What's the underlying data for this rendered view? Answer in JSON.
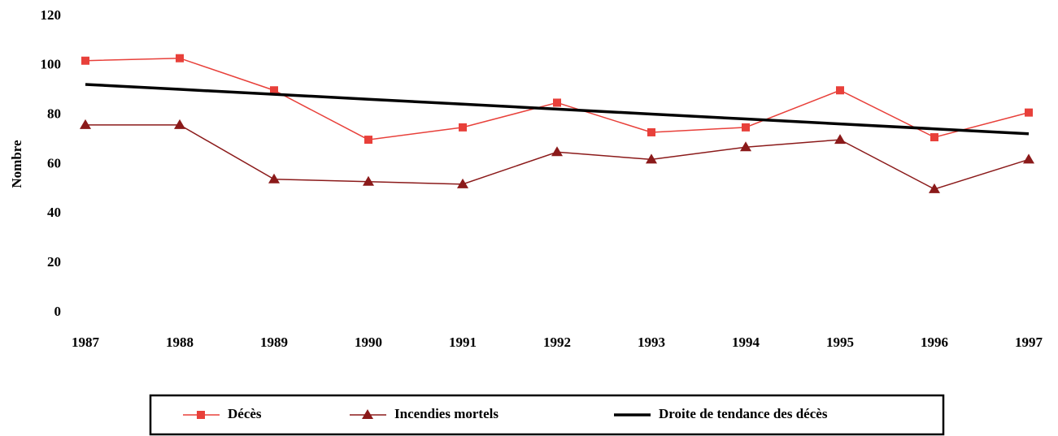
{
  "chart_data": {
    "type": "line",
    "y_label": "Nombre",
    "categories": [
      "1987",
      "1988",
      "1989",
      "1990",
      "1991",
      "1992",
      "1993",
      "1994",
      "1995",
      "1996",
      "1997"
    ],
    "series": [
      {
        "name": "Décès",
        "color": "#e8403a",
        "marker": "square",
        "values": [
          102,
          103,
          90,
          70,
          75,
          85,
          73,
          75,
          90,
          71,
          81
        ]
      },
      {
        "name": "Incendies mortels",
        "color": "#8b1a1a",
        "marker": "triangle",
        "values": [
          76,
          76,
          54,
          53,
          52,
          65,
          62,
          67,
          70,
          50,
          62
        ]
      },
      {
        "name": "Droite de tendance des décès",
        "color": "#000000",
        "marker": null,
        "values": [
          92.4,
          90.4,
          88.4,
          86.4,
          84.4,
          82.4,
          80.4,
          78.4,
          76.4,
          74.4,
          72.4
        ]
      }
    ],
    "ylim": [
      0,
      120
    ],
    "yticks": [
      0,
      20,
      40,
      60,
      80,
      100,
      120
    ],
    "grid": false,
    "legend": "bottom"
  }
}
